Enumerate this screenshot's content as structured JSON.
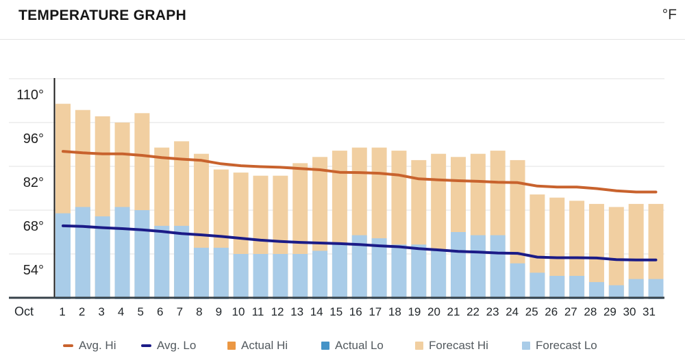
{
  "header": {
    "title": "TEMPERATURE GRAPH",
    "unit": "°F"
  },
  "colors": {
    "background": "#ffffff",
    "grid": "#e2e2e2",
    "baseline": "#37424a",
    "y_axis": "#1a1a1a",
    "tick_text": "#1f1f1f",
    "day_text": "#22272b",
    "title_text": "#161616",
    "legend_text": "#52595e",
    "avg_hi_line": "#c8622d",
    "avg_lo_line": "#1b1b87",
    "actual_hi": "#eb9743",
    "actual_lo": "#4593c7",
    "forecast_hi": "#f1cfa1",
    "forecast_lo": "#a9cce8"
  },
  "legend": {
    "items": [
      {
        "label": "Avg. Hi",
        "swatch": "line",
        "color": "#c8622d"
      },
      {
        "label": "Avg. Lo",
        "swatch": "line",
        "color": "#1b1b87"
      },
      {
        "label": "Actual Hi",
        "swatch": "square",
        "color": "#eb9743"
      },
      {
        "label": "Actual Lo",
        "swatch": "square",
        "color": "#4593c7"
      },
      {
        "label": "Forecast Hi",
        "swatch": "square",
        "color": "#f1cfa1"
      },
      {
        "label": "Forecast Lo",
        "swatch": "square",
        "color": "#a9cce8"
      }
    ]
  },
  "chart_data": {
    "type": "bar+line",
    "title": "TEMPERATURE GRAPH",
    "unit": "°F",
    "month_label": "Oct",
    "days": [
      1,
      2,
      3,
      4,
      5,
      6,
      7,
      8,
      9,
      10,
      11,
      12,
      13,
      14,
      15,
      16,
      17,
      18,
      19,
      20,
      21,
      22,
      23,
      24,
      25,
      26,
      27,
      28,
      29,
      30,
      31
    ],
    "ylim": [
      45,
      115
    ],
    "y_ticks": [
      {
        "label": "110°",
        "value": 110
      },
      {
        "label": "96°",
        "value": 96
      },
      {
        "label": "82°",
        "value": 82
      },
      {
        "label": "68°",
        "value": 68
      },
      {
        "label": "54°",
        "value": 54
      }
    ],
    "grid": "horizontal",
    "legend_position": "bottom",
    "series": [
      {
        "name": "Avg. Hi",
        "type": "line",
        "color": "#c8622d",
        "values": [
          91.8,
          91.3,
          91.0,
          91.0,
          90.5,
          89.8,
          89.3,
          88.9,
          87.8,
          87.2,
          86.9,
          86.7,
          86.3,
          85.9,
          85.1,
          85.0,
          84.8,
          84.2,
          83.0,
          82.7,
          82.4,
          82.2,
          81.9,
          81.8,
          80.7,
          80.4,
          80.4,
          79.9,
          79.2,
          78.8,
          78.8
        ]
      },
      {
        "name": "Avg. Lo",
        "type": "line",
        "color": "#1b1b87",
        "values": [
          68.0,
          67.8,
          67.4,
          67.1,
          66.7,
          66.2,
          65.5,
          65.1,
          64.6,
          64.0,
          63.4,
          63.0,
          62.7,
          62.5,
          62.3,
          62.0,
          61.6,
          61.3,
          60.7,
          60.3,
          59.8,
          59.6,
          59.3,
          59.2,
          58.0,
          57.8,
          57.8,
          57.7,
          57.2,
          57.1,
          57.1
        ]
      },
      {
        "name": "Actual Hi",
        "type": "bar",
        "color": "#eb9743",
        "values": []
      },
      {
        "name": "Actual Lo",
        "type": "bar",
        "color": "#4593c7",
        "values": []
      },
      {
        "name": "Forecast Hi",
        "type": "bar",
        "color": "#f1cfa1",
        "values": [
          107,
          105,
          103,
          101,
          104,
          93,
          95,
          91,
          86,
          85,
          84,
          84,
          88,
          90,
          92,
          93,
          93,
          92,
          89,
          91,
          90,
          91,
          92,
          89,
          78,
          77,
          76,
          75,
          74,
          75,
          75
        ]
      },
      {
        "name": "Forecast Lo",
        "type": "bar",
        "color": "#a9cce8",
        "values": [
          72,
          74,
          71,
          74,
          73,
          68,
          68,
          61,
          61,
          59,
          59,
          59,
          59,
          60,
          62,
          65,
          64,
          62,
          62,
          60,
          66,
          65,
          65,
          56,
          53,
          52,
          52,
          50,
          49,
          51,
          51
        ]
      }
    ]
  }
}
